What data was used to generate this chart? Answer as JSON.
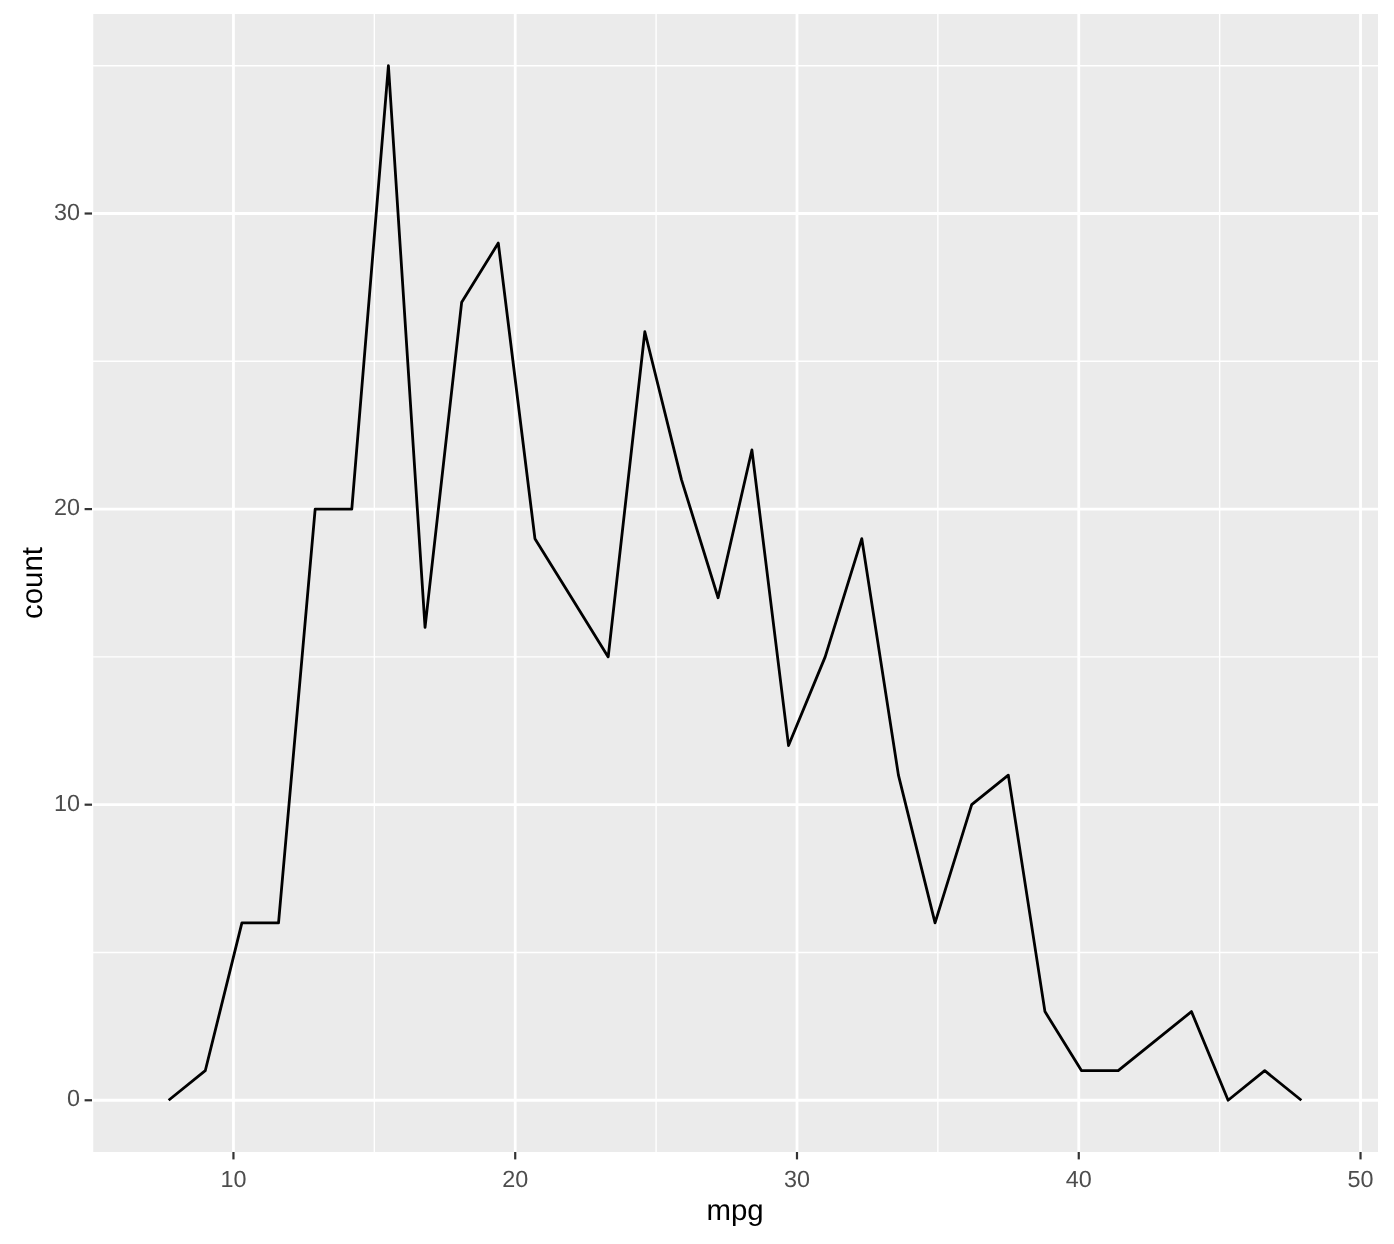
{
  "chart_data": {
    "type": "line",
    "xlabel": "mpg",
    "ylabel": "count",
    "x": [
      7.7,
      9.0,
      10.3,
      11.6,
      12.9,
      14.2,
      15.5,
      16.8,
      18.1,
      19.4,
      20.7,
      22.0,
      23.3,
      24.6,
      25.9,
      27.2,
      28.4,
      29.7,
      31.0,
      32.3,
      33.6,
      34.9,
      36.2,
      37.5,
      38.8,
      40.1,
      41.4,
      42.7,
      44.0,
      45.3,
      46.6,
      47.9
    ],
    "series": [
      {
        "color": "#000000",
        "values": [
          0,
          1,
          6,
          6,
          20,
          20,
          35,
          16,
          27,
          29,
          19,
          17,
          15,
          26,
          21,
          17,
          22,
          12,
          15,
          19,
          11,
          6,
          10,
          11,
          3,
          1,
          1,
          2,
          3,
          0,
          1,
          0
        ]
      }
    ],
    "xlim": [
      4.98,
      50.62
    ],
    "ylim": [
      -1.75,
      36.75
    ],
    "xticks": [
      10,
      20,
      30,
      40,
      50
    ],
    "yticks": [
      0,
      10,
      20,
      30
    ],
    "grid": true
  }
}
